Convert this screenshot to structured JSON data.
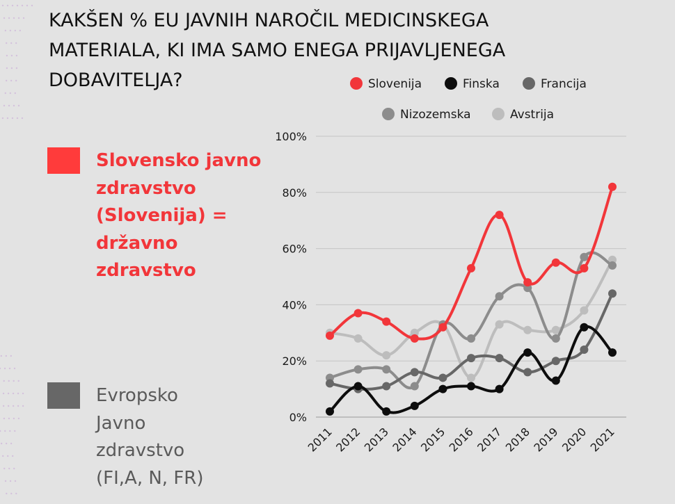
{
  "title_lines": [
    "KAKŠEN % EU JAVNIH NAROČIL MEDICINSKEGA",
    "MATERIALA, KI IMA SAMO ENEGA PRIJAVLJENEGA",
    "DOBAVITELJA?"
  ],
  "cards": {
    "slovenia": {
      "color": "#ff3b3b",
      "lines": [
        "Slovensko javno",
        "zdravstvo",
        "(Slovenija) =",
        "državno",
        "zdravstvo"
      ]
    },
    "europe": {
      "color": "#676767",
      "lines": [
        "Evropsko",
        "Javno",
        "zdravstvo",
        "(FI,A, N, FR)"
      ]
    }
  },
  "chart_data": {
    "type": "line",
    "categories": [
      "2011",
      "2012",
      "2013",
      "2014",
      "2015",
      "2016",
      "2017",
      "2018",
      "2019",
      "2020",
      "2021"
    ],
    "y_ticks": [
      "0%",
      "20%",
      "40%",
      "60%",
      "80%",
      "100%"
    ],
    "ylim": [
      0,
      100
    ],
    "grid": true,
    "legend_position": "top",
    "series": [
      {
        "name": "Slovenija",
        "color": "#f2363a",
        "values": [
          29,
          37,
          34,
          28,
          32,
          53,
          72,
          48,
          55,
          53,
          82
        ]
      },
      {
        "name": "Finska",
        "color": "#0d0d0d",
        "values": [
          2,
          11,
          2,
          4,
          10,
          11,
          10,
          23,
          13,
          32,
          23
        ]
      },
      {
        "name": "Francija",
        "color": "#676767",
        "values": [
          12,
          10,
          11,
          16,
          14,
          21,
          21,
          16,
          20,
          24,
          44
        ]
      },
      {
        "name": "Nizozemska",
        "color": "#8c8c8c",
        "values": [
          14,
          17,
          17,
          11,
          33,
          28,
          43,
          46,
          28,
          57,
          54
        ]
      },
      {
        "name": "Avstrija",
        "color": "#bdbdbd",
        "values": [
          30,
          28,
          22,
          30,
          33,
          14,
          33,
          31,
          31,
          38,
          56
        ]
      }
    ]
  }
}
